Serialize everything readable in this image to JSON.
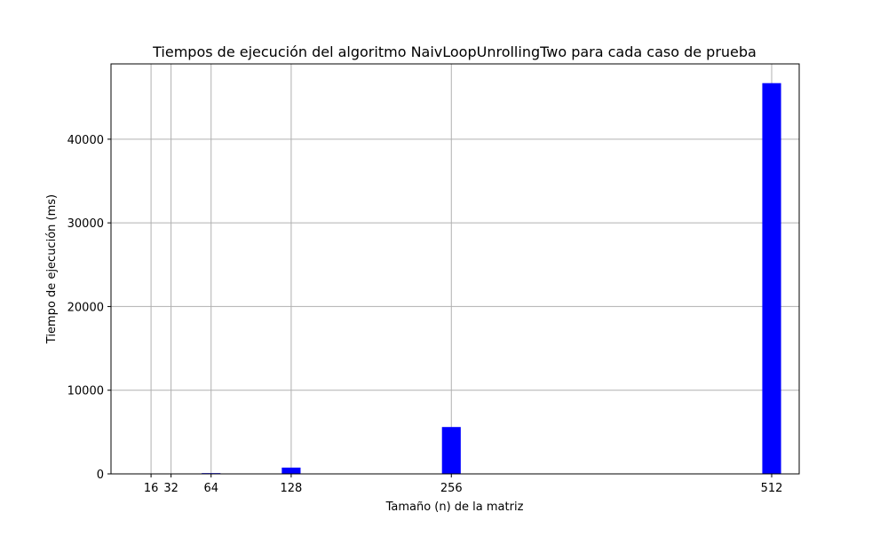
{
  "chart_data": {
    "type": "bar",
    "title": "Tiempos de ejecución del algoritmo NaivLoopUnrollingTwo para cada caso de prueba",
    "xlabel": "Tamaño (n) de la matriz",
    "ylabel": "Tiempo de ejecución (ms)",
    "x": [
      16,
      32,
      64,
      128,
      256,
      512
    ],
    "x_tick_labels": [
      "16",
      "32",
      "64",
      "128",
      "256",
      "512"
    ],
    "values": [
      2,
      10,
      90,
      750,
      5600,
      46700
    ],
    "bar_width": 15,
    "xlim": [
      -16,
      534
    ],
    "ylim": [
      0,
      49000
    ],
    "y_ticks": [
      0,
      10000,
      20000,
      30000,
      40000
    ],
    "y_tick_labels": [
      "0",
      "10000",
      "20000",
      "30000",
      "40000"
    ],
    "grid": true,
    "bar_color": "#0000ff",
    "grid_color": "#b0b0b0"
  }
}
